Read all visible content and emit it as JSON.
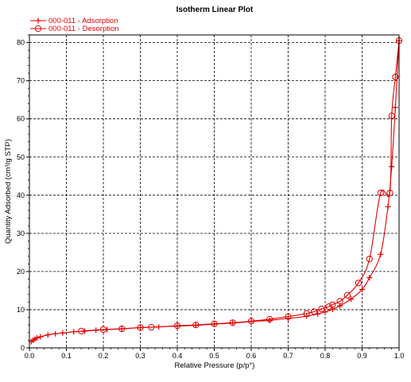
{
  "chart_data": {
    "type": "line",
    "title": "Isotherm Linear Plot",
    "xlabel": "Relative Pressure (p/p°)",
    "ylabel": "Quantity Adsorbed (cm³/g STP)",
    "xlim": [
      0,
      1.0
    ],
    "ylim": [
      0,
      82
    ],
    "x_ticks": [
      "0.0",
      "0.1",
      "0.2",
      "0.3",
      "0.4",
      "0.5",
      "0.6",
      "0.7",
      "0.8",
      "0.9",
      "1.0"
    ],
    "y_ticks": [
      "0",
      "10",
      "20",
      "30",
      "40",
      "50",
      "60",
      "70",
      "80"
    ],
    "grid": true,
    "legend_position": "top-left",
    "series": [
      {
        "name": "000-011 - Adsorption",
        "color": "#e00000",
        "marker": "plus",
        "x": [
          0.005,
          0.01,
          0.015,
          0.02,
          0.03,
          0.05,
          0.07,
          0.09,
          0.12,
          0.15,
          0.18,
          0.21,
          0.25,
          0.3,
          0.35,
          0.4,
          0.45,
          0.5,
          0.55,
          0.6,
          0.65,
          0.7,
          0.75,
          0.78,
          0.8,
          0.82,
          0.84,
          0.87,
          0.9,
          0.92,
          0.95,
          0.97,
          0.98,
          0.99,
          1.0
        ],
        "y": [
          1.6,
          2.0,
          2.3,
          2.6,
          2.9,
          3.4,
          3.7,
          3.9,
          4.2,
          4.4,
          4.6,
          4.8,
          5.0,
          5.3,
          5.5,
          5.7,
          5.9,
          6.2,
          6.5,
          6.9,
          7.2,
          7.7,
          8.3,
          8.9,
          9.4,
          10.1,
          11.0,
          12.8,
          15.3,
          18.4,
          24.5,
          37.0,
          47.5,
          63.0,
          80.5
        ]
      },
      {
        "name": "000-011 - Desorption",
        "color": "#e00000",
        "marker": "circle",
        "x": [
          1.0,
          0.99,
          0.98,
          0.975,
          0.95,
          0.92,
          0.89,
          0.86,
          0.84,
          0.82,
          0.81,
          0.79,
          0.77,
          0.75,
          0.7,
          0.65,
          0.6,
          0.55,
          0.5,
          0.45,
          0.4,
          0.33,
          0.3,
          0.25,
          0.2,
          0.14
        ],
        "y": [
          80.5,
          71.0,
          60.8,
          40.6,
          40.6,
          23.3,
          17.0,
          13.8,
          12.2,
          11.3,
          10.8,
          10.2,
          9.5,
          9.0,
          8.2,
          7.5,
          7.0,
          6.6,
          6.3,
          6.0,
          5.8,
          5.4,
          5.3,
          5.0,
          4.8,
          4.4
        ]
      }
    ]
  }
}
